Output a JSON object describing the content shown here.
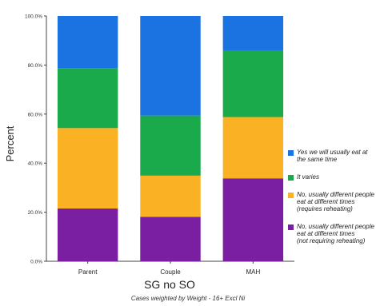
{
  "chart_data": {
    "type": "bar",
    "stacked": true,
    "categories": [
      "Parent",
      "Couple",
      "MAH"
    ],
    "xlabel": "SG no SO",
    "ylabel": "Percent",
    "ylim": [
      0,
      100
    ],
    "y_ticks": [
      "0.0%",
      "20.0%",
      "40.0%",
      "60.0%",
      "80.0%",
      "100.0%"
    ],
    "series": [
      {
        "name": "No, usually different people eat at different times (not requiring reheating)",
        "color": "#7b1fa2",
        "values": [
          21.5,
          18.1,
          33.8
        ]
      },
      {
        "name": "No, usually different people eat at different times (requires reheating)",
        "color": "#fbb124",
        "values": [
          32.8,
          16.8,
          25.0
        ]
      },
      {
        "name": "It varies",
        "color": "#1aaa4b",
        "values": [
          24.5,
          24.5,
          27.2
        ]
      },
      {
        "name": "Yes we will usually eat at the same time",
        "color": "#1a73e0",
        "values": [
          21.2,
          40.6,
          14.0
        ]
      }
    ],
    "legend_position": "right",
    "grid": false
  },
  "legend": [
    {
      "label": "Yes we will usually eat at\nthe same time",
      "color": "#1a73e0"
    },
    {
      "label": "It varies",
      "color": "#1aaa4b"
    },
    {
      "label": "No, usually different people\neat at different times\n(requires reheating)",
      "color": "#fbb124"
    },
    {
      "label": "No, usually different people\neat at different times\n(not requiring reheating)",
      "color": "#7b1fa2"
    }
  ],
  "footnote": "Cases weighted by Weight - 16+ Excl Ni"
}
